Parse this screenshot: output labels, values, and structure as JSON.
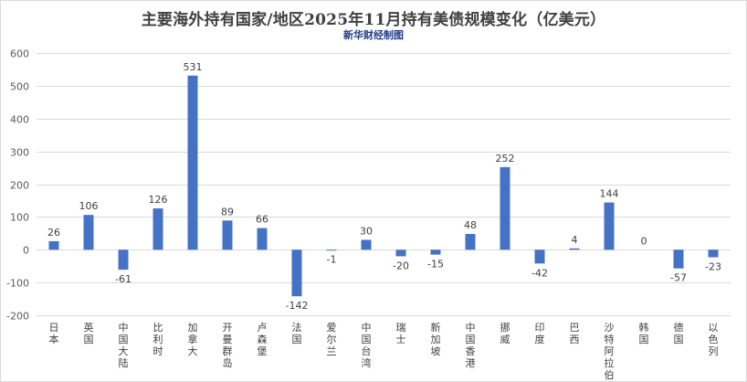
{
  "chart_data": {
    "type": "bar",
    "title": "主要海外持有国家/地区2025年11月持有美债规模变化（亿美元）",
    "subtitle": "新华财经制图",
    "categories": [
      "日本",
      "英国",
      "中国大陆",
      "比利时",
      "加拿大",
      "开曼群岛",
      "卢森堡",
      "法国",
      "爱尔兰",
      "中国台湾",
      "瑞士",
      "新加坡",
      "中国香港",
      "挪威",
      "印度",
      "巴西",
      "沙特阿拉伯",
      "韩国",
      "德国",
      "以色列"
    ],
    "values": [
      26,
      106,
      -61,
      126,
      531,
      89,
      66,
      -142,
      -1,
      30,
      -20,
      -15,
      48,
      252,
      -42,
      4,
      144,
      0,
      -57,
      -23
    ],
    "data_labels": [
      "26",
      "106",
      "-61",
      "126",
      "531",
      "89",
      "66",
      "-142",
      "-1",
      "30",
      "-20",
      "-15",
      "48",
      "252",
      "-42",
      "4",
      "144",
      "0",
      "-57",
      "-23"
    ],
    "yticks": [
      -200,
      -100,
      0,
      100,
      200,
      300,
      400,
      500,
      600
    ],
    "ylim": [
      -200,
      600
    ],
    "xlabel": "",
    "ylabel": "",
    "grid": true,
    "bar_color": "#4472c4"
  }
}
